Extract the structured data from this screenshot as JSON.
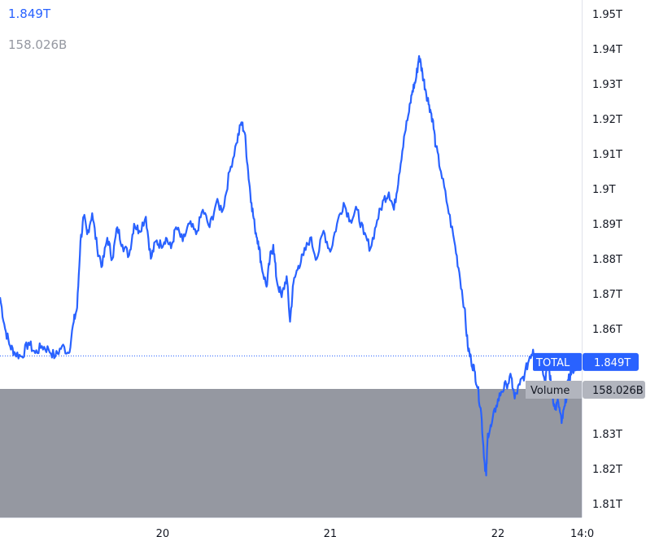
{
  "header": {
    "total_value": "1.849T",
    "volume_value": "158.026B"
  },
  "colors": {
    "line": "#2962ff",
    "volume_fill": "#9598a1",
    "volume_label_bg": "#b2b5be",
    "axis_text": "#131722",
    "reference_line": "#2962ff"
  },
  "chart_data": {
    "type": "line",
    "title": "",
    "xlabel": "",
    "ylabel": "",
    "x_ticks": [
      "20",
      "21",
      "22",
      "14:0"
    ],
    "x_tick_positions": [
      1.0,
      2.0,
      3.0,
      3.5
    ],
    "xlim": [
      0.03,
      3.5
    ],
    "y_ticks": [
      "1.95T",
      "1.94T",
      "1.93T",
      "1.92T",
      "1.91T",
      "1.9T",
      "1.89T",
      "1.88T",
      "1.87T",
      "1.86T",
      "1.83T",
      "1.82T",
      "1.81T"
    ],
    "y_tick_values": [
      1.95,
      1.94,
      1.93,
      1.92,
      1.91,
      1.9,
      1.89,
      1.88,
      1.87,
      1.86,
      1.83,
      1.82,
      1.81
    ],
    "ylim": [
      1.806,
      1.954
    ],
    "grid": false,
    "series": [
      {
        "name": "TOTAL",
        "x": [
          0.03,
          0.06,
          0.09,
          0.12,
          0.16,
          0.2,
          0.24,
          0.28,
          0.32,
          0.36,
          0.4,
          0.44,
          0.47,
          0.49,
          0.51,
          0.53,
          0.55,
          0.58,
          0.61,
          0.64,
          0.67,
          0.7,
          0.73,
          0.76,
          0.8,
          0.83,
          0.86,
          0.9,
          0.93,
          0.96,
          0.99,
          1.02,
          1.05,
          1.08,
          1.12,
          1.16,
          1.2,
          1.24,
          1.28,
          1.32,
          1.36,
          1.4,
          1.44,
          1.47,
          1.49,
          1.51,
          1.53,
          1.55,
          1.57,
          1.59,
          1.62,
          1.64,
          1.66,
          1.68,
          1.71,
          1.74,
          1.76,
          1.78,
          1.81,
          1.84,
          1.88,
          1.92,
          1.96,
          2.0,
          2.04,
          2.08,
          2.12,
          2.16,
          2.2,
          2.24,
          2.28,
          2.32,
          2.35,
          2.38,
          2.41,
          2.44,
          2.47,
          2.49,
          2.51,
          2.53,
          2.55,
          2.57,
          2.59,
          2.61,
          2.63,
          2.66,
          2.7,
          2.74,
          2.77,
          2.8,
          2.82,
          2.84,
          2.86,
          2.88,
          2.9,
          2.92,
          2.93,
          2.94,
          2.96,
          2.99,
          3.02,
          3.05,
          3.08,
          3.1,
          3.13,
          3.16,
          3.19,
          3.21,
          3.23,
          3.25,
          3.28,
          3.3,
          3.32,
          3.34,
          3.36,
          3.38,
          3.4,
          3.42,
          3.44,
          3.46,
          3.48
        ],
        "values": [
          1.869,
          1.86,
          1.855,
          1.853,
          1.852,
          1.856,
          1.853,
          1.855,
          1.854,
          1.852,
          1.855,
          1.853,
          1.862,
          1.866,
          1.885,
          1.892,
          1.887,
          1.893,
          1.883,
          1.878,
          1.886,
          1.88,
          1.889,
          1.884,
          1.881,
          1.89,
          1.888,
          1.892,
          1.88,
          1.885,
          1.884,
          1.886,
          1.883,
          1.889,
          1.885,
          1.89,
          1.887,
          1.894,
          1.889,
          1.896,
          1.894,
          1.905,
          1.913,
          1.919,
          1.916,
          1.905,
          1.896,
          1.889,
          1.885,
          1.878,
          1.872,
          1.88,
          1.884,
          1.874,
          1.869,
          1.875,
          1.862,
          1.873,
          1.878,
          1.881,
          1.886,
          1.88,
          1.888,
          1.882,
          1.89,
          1.896,
          1.891,
          1.894,
          1.887,
          1.883,
          1.891,
          1.897,
          1.899,
          1.894,
          1.904,
          1.915,
          1.922,
          1.928,
          1.931,
          1.938,
          1.933,
          1.928,
          1.924,
          1.92,
          1.912,
          1.905,
          1.895,
          1.885,
          1.876,
          1.866,
          1.855,
          1.851,
          1.848,
          1.843,
          1.836,
          1.822,
          1.818,
          1.83,
          1.832,
          1.838,
          1.842,
          1.844,
          1.846,
          1.84,
          1.844,
          1.847,
          1.852,
          1.854,
          1.85,
          1.852,
          1.845,
          1.85,
          1.843,
          1.837,
          1.839,
          1.833,
          1.838,
          1.845,
          1.848,
          1.849,
          1.85
        ]
      }
    ],
    "reference_value": 1.8522,
    "last_value_label": {
      "name": "TOTAL",
      "value": "1.849T"
    },
    "volume": {
      "name": "Volume",
      "value": "158.026B",
      "x_end": 3.48
    },
    "legend": "right-axis-labels"
  }
}
